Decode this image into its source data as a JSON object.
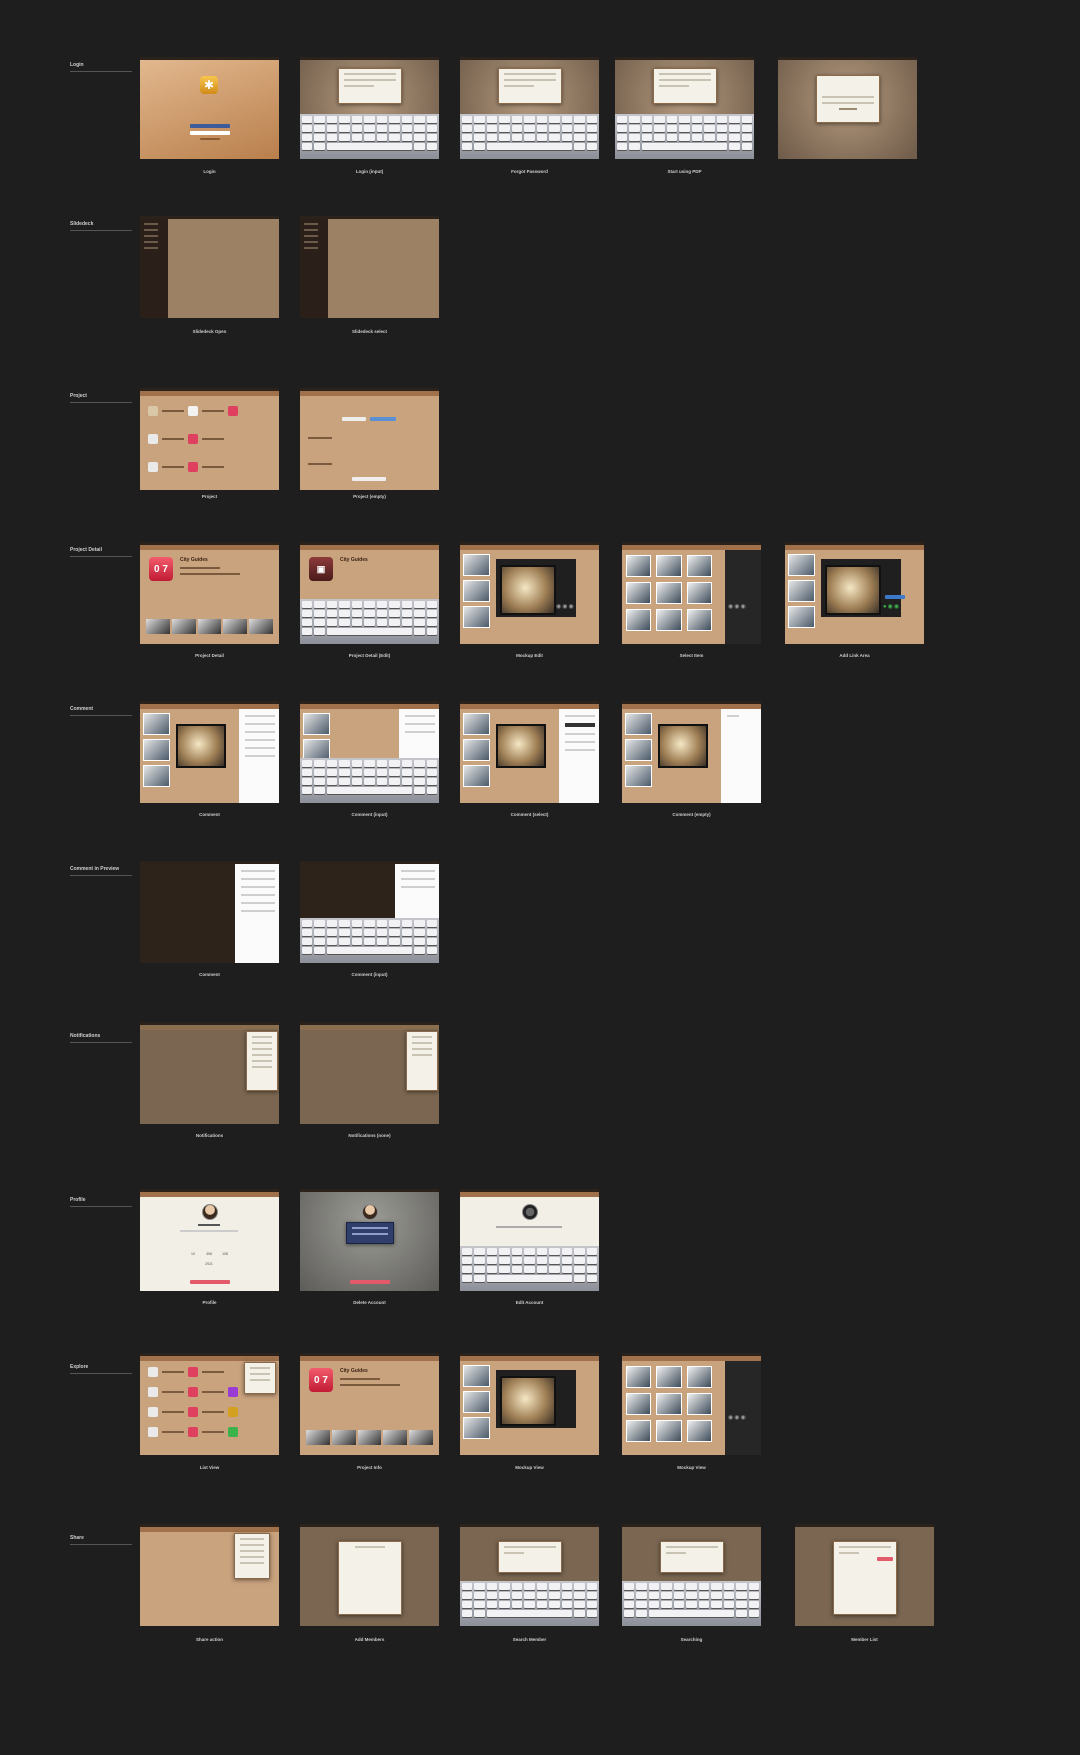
{
  "sections": [
    {
      "id": "login",
      "label": "Login",
      "screens": [
        {
          "caption": "Login"
        },
        {
          "caption": "Login (input)"
        },
        {
          "caption": "Forgot Password"
        },
        {
          "caption": "Start using PDP"
        },
        {
          "caption": ""
        }
      ]
    },
    {
      "id": "slidedeck",
      "label": "Slidedeck",
      "screens": [
        {
          "caption": "Slidedeck Open"
        },
        {
          "caption": "Slidedeck select"
        }
      ]
    },
    {
      "id": "project",
      "label": "Project",
      "screens": [
        {
          "caption": "Project"
        },
        {
          "caption": "Project (empty)"
        }
      ]
    },
    {
      "id": "project-detail",
      "label": "Project Detail",
      "screens": [
        {
          "caption": "Project Detail",
          "app_title": "City Guides",
          "icon_digits": "0 7"
        },
        {
          "caption": "Project Detail (Edit)",
          "app_title": "City Guides"
        },
        {
          "caption": "Mockup Edit"
        },
        {
          "caption": "Select Item"
        },
        {
          "caption": "Add Link Area"
        }
      ]
    },
    {
      "id": "comment",
      "label": "Comment",
      "screens": [
        {
          "caption": "Comment"
        },
        {
          "caption": "Comment (input)"
        },
        {
          "caption": "Comment (select)"
        },
        {
          "caption": "Comment (empty)"
        }
      ]
    },
    {
      "id": "comment-preview",
      "label": "Comment in Preview",
      "screens": [
        {
          "caption": "Comment"
        },
        {
          "caption": "Comment (input)"
        }
      ]
    },
    {
      "id": "notifications",
      "label": "Notifications",
      "screens": [
        {
          "caption": "Notifications"
        },
        {
          "caption": "Notifications (none)"
        }
      ]
    },
    {
      "id": "profile",
      "label": "Profile",
      "screens": [
        {
          "caption": "Profile",
          "stats": [
            "10",
            "396",
            "108"
          ],
          "count": "2921"
        },
        {
          "caption": "Delete Account"
        },
        {
          "caption": "Edit Account"
        }
      ]
    },
    {
      "id": "explore",
      "label": "Explore",
      "screens": [
        {
          "caption": "List View"
        },
        {
          "caption": "Project Info",
          "app_title": "City Guides",
          "icon_digits": "0 7"
        },
        {
          "caption": "Mockup View"
        },
        {
          "caption": "Mockup View"
        }
      ]
    },
    {
      "id": "share",
      "label": "Share",
      "screens": [
        {
          "caption": "Share action"
        },
        {
          "caption": "Add Members"
        },
        {
          "caption": "Search Member"
        },
        {
          "caption": "Searching"
        },
        {
          "caption": "Member List"
        }
      ]
    }
  ],
  "colors": {
    "background": "#1e1e1e",
    "tan": "#c9a27e",
    "brown": "#7a6651",
    "accent_red": "#e35a6a"
  }
}
